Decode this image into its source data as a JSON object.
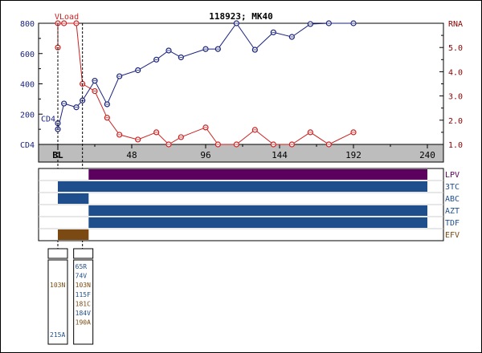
{
  "chart_data": {
    "type": "line",
    "title": "118923; MK40",
    "x_ticks": [
      0,
      48,
      96,
      144,
      192,
      240
    ],
    "x_tick_labels": [
      "BL",
      "48",
      "96",
      "144",
      "192",
      "240"
    ],
    "x_range": [
      -16,
      240
    ],
    "left_axis": {
      "label": "CD4",
      "range": [
        0,
        800
      ],
      "ticks": [
        0,
        200,
        400,
        600,
        800
      ],
      "tick_labels": [
        "CD4",
        "200",
        "400",
        "600",
        "800"
      ],
      "color": "#1a237e"
    },
    "right_axis": {
      "label": "RNA",
      "range": [
        1.0,
        6.0
      ],
      "ticks": [
        1.0,
        2.0,
        3.0,
        4.0,
        5.0
      ],
      "tick_labels": [
        "1.0",
        "2.0",
        "3.0",
        "4.0",
        "5.0"
      ],
      "color": "#8b0000"
    },
    "series": [
      {
        "name": "CD4",
        "axis": "left",
        "color": "#1a237e",
        "x": [
          0,
          0,
          4,
          12,
          16,
          24,
          32,
          40,
          52,
          64,
          72,
          80,
          96,
          104,
          116,
          128,
          140,
          152,
          164,
          176,
          192
        ],
        "y": [
          140,
          100,
          270,
          245,
          290,
          420,
          265,
          450,
          490,
          560,
          620,
          575,
          630,
          630,
          800,
          625,
          740,
          710,
          795,
          800,
          800
        ]
      },
      {
        "name": "VLoad",
        "axis": "right",
        "color": "#cc2222",
        "x": [
          0,
          0,
          4,
          12,
          16,
          24,
          32,
          40,
          52,
          64,
          72,
          80,
          96,
          104,
          116,
          128,
          140,
          152,
          164,
          176,
          192
        ],
        "y": [
          5.0,
          6.0,
          6.0,
          6.0,
          3.5,
          3.2,
          2.1,
          1.4,
          1.2,
          1.5,
          1.0,
          1.3,
          1.7,
          1.0,
          1.0,
          1.6,
          1.0,
          1.0,
          1.5,
          1.0,
          1.5
        ]
      }
    ],
    "markers": [
      {
        "x": 0,
        "label": "CD4",
        "color": "#1a237e"
      },
      {
        "x": 0,
        "label": "VLoad",
        "color": "#cc2222"
      }
    ],
    "therapy_rows": [
      {
        "name": "LPV",
        "color": "#5c0060",
        "label_color": "#5c0060",
        "segments": [
          [
            20,
            240
          ]
        ]
      },
      {
        "name": "3TC",
        "color": "#1f4e8c",
        "label_color": "#1f4e8c",
        "segments": [
          [
            0,
            240
          ]
        ]
      },
      {
        "name": "ABC",
        "color": "#1f4e8c",
        "label_color": "#1f4e8c",
        "segments": [
          [
            0,
            20
          ]
        ]
      },
      {
        "name": "AZT",
        "color": "#1f4e8c",
        "label_color": "#1f4e8c",
        "segments": [
          [
            20,
            240
          ]
        ]
      },
      {
        "name": "TDF",
        "color": "#1f4e8c",
        "label_color": "#1f4e8c",
        "segments": [
          [
            20,
            240
          ]
        ]
      },
      {
        "name": "EFV",
        "color": "#7a4a12",
        "label_color": "#7a4a12",
        "segments": [
          [
            0,
            20
          ]
        ]
      }
    ],
    "genotype_boxes": [
      {
        "x": 0,
        "mutations": [
          {
            "text": "103N",
            "color": "#7a4a12"
          },
          {
            "text": "215A",
            "color": "#1f4e8c"
          }
        ]
      },
      {
        "x": 16,
        "mutations": [
          {
            "text": "65R",
            "color": "#1f4e8c"
          },
          {
            "text": "74V",
            "color": "#1f4e8c"
          },
          {
            "text": "103N",
            "color": "#7a4a12"
          },
          {
            "text": "115F",
            "color": "#1f4e8c"
          },
          {
            "text": "181C",
            "color": "#7a4a12"
          },
          {
            "text": "184V",
            "color": "#1f4e8c"
          },
          {
            "text": "190A",
            "color": "#7a4a12"
          }
        ]
      }
    ]
  }
}
